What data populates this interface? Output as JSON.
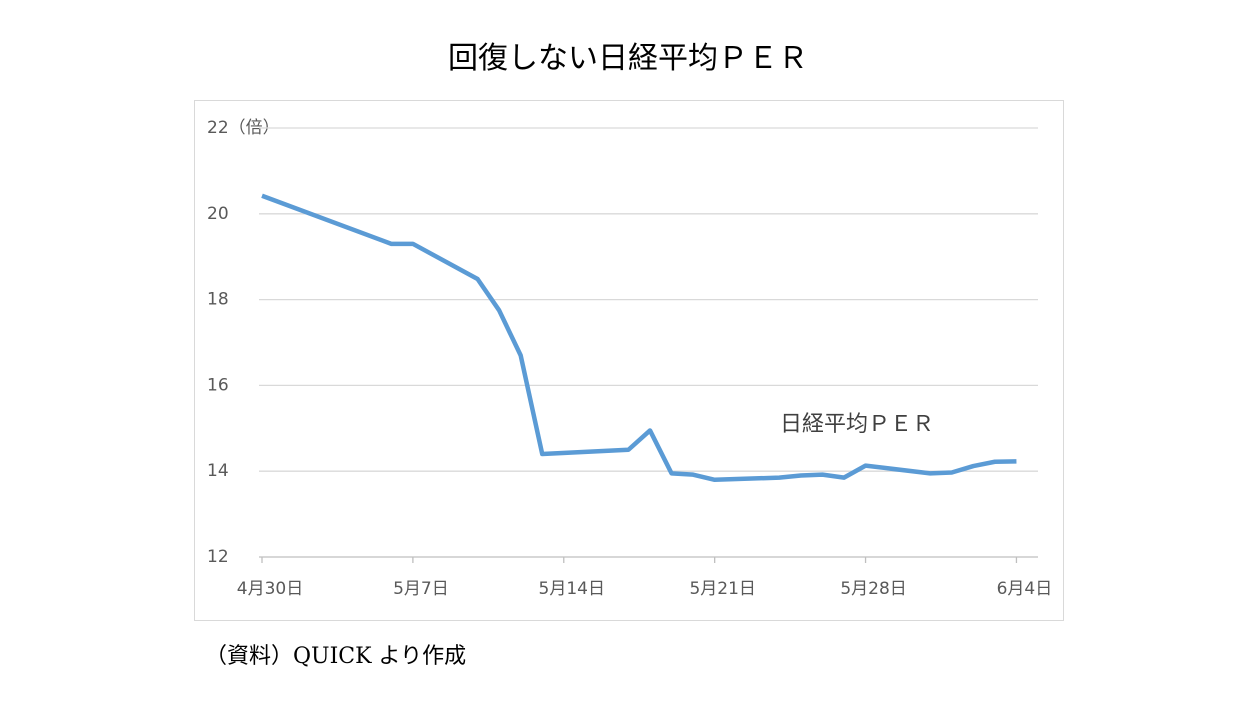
{
  "chart_data": {
    "type": "line",
    "title": "回復しない日経平均ＰＥＲ",
    "source": "（資料）QUICK より作成",
    "x": [
      0,
      6,
      7,
      10,
      11,
      12,
      13,
      17,
      18,
      19,
      20,
      21,
      24,
      25,
      26,
      27,
      28,
      31,
      32,
      33,
      34,
      35
    ],
    "series": [
      {
        "name": "日経平均ＰＥＲ",
        "color": "#5b9bd5",
        "values": [
          20.42,
          19.3,
          19.3,
          18.48,
          17.75,
          16.7,
          14.4,
          14.5,
          14.95,
          13.95,
          13.92,
          13.8,
          13.85,
          13.9,
          13.92,
          13.85,
          14.13,
          13.95,
          13.97,
          14.12,
          14.22,
          14.23
        ]
      }
    ],
    "xlim": [
      0,
      36
    ],
    "xticks": [
      {
        "value": 0,
        "label": "4月30日"
      },
      {
        "value": 7,
        "label": "5月7日"
      },
      {
        "value": 14,
        "label": "5月14日"
      },
      {
        "value": 21,
        "label": "5月21日"
      },
      {
        "value": 28,
        "label": "5月28日"
      },
      {
        "value": 35,
        "label": "6月4日"
      }
    ],
    "ylim": [
      12,
      22
    ],
    "yticks": [
      12,
      14,
      16,
      18,
      20,
      {
        "value": 22,
        "label": "22（倍）"
      }
    ],
    "grid": true
  }
}
